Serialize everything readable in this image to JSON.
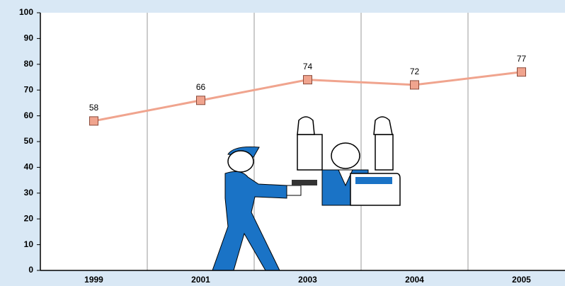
{
  "chart_data": {
    "type": "line",
    "categories": [
      "1999",
      "2001",
      "2003",
      "2004",
      "2005"
    ],
    "series": [
      {
        "values": [
          58,
          66,
          74,
          72,
          77
        ],
        "color": "#f0a48e"
      }
    ],
    "ylim": [
      0,
      100
    ],
    "yticks": [
      0,
      10,
      20,
      30,
      40,
      50,
      60,
      70,
      80,
      90,
      100
    ],
    "grid": "x"
  }
}
